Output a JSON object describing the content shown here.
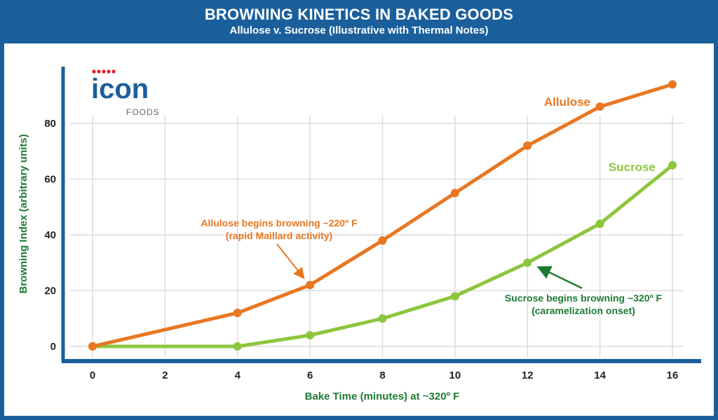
{
  "header": {
    "title": "BROWNING KINETICS IN BAKED GOODS",
    "subtitle": "Allulose v. Sucrose (Illustrative with Thermal Notes)"
  },
  "logo": {
    "text": "icon",
    "subtext": "FOODS"
  },
  "colors": {
    "allulose": "#e87722",
    "sucrose": "#8cc63f",
    "annotation_sucrose": "#1e7b34",
    "axis": "#1a5f9c",
    "axis_title": "#1e7b34"
  },
  "chart_data": {
    "type": "line",
    "title": "BROWNING KINETICS IN BAKED GOODS",
    "subtitle": "Allulose v. Sucrose (Illustrative with Thermal Notes)",
    "xlabel": "Bake Time (minutes) at ~320º F",
    "ylabel": "Browning Index (arbitrary units)",
    "xlim": [
      0,
      16
    ],
    "ylim": [
      0,
      95
    ],
    "xticks": [
      "0",
      "2",
      "4",
      "6",
      "8",
      "10",
      "12",
      "14",
      "16"
    ],
    "yticks": [
      "0",
      "20",
      "40",
      "60",
      "80"
    ],
    "grid": true,
    "x": [
      0,
      4,
      6,
      8,
      10,
      12,
      14,
      16
    ],
    "series": [
      {
        "name": "Allulose",
        "values": [
          0,
          12,
          22,
          38,
          55,
          72,
          86,
          94
        ]
      },
      {
        "name": "Sucrose",
        "values": [
          0,
          0,
          4,
          10,
          18,
          30,
          44,
          65
        ]
      }
    ],
    "annotations": [
      {
        "line1": "Allulose begins browning ~220º F",
        "line2": "(rapid Maillard activity)",
        "x": 6,
        "y": 22
      },
      {
        "line1": "Sucrose begins browning ~320º F",
        "line2": "(caramelization onset)",
        "x": 12,
        "y": 30
      }
    ]
  }
}
